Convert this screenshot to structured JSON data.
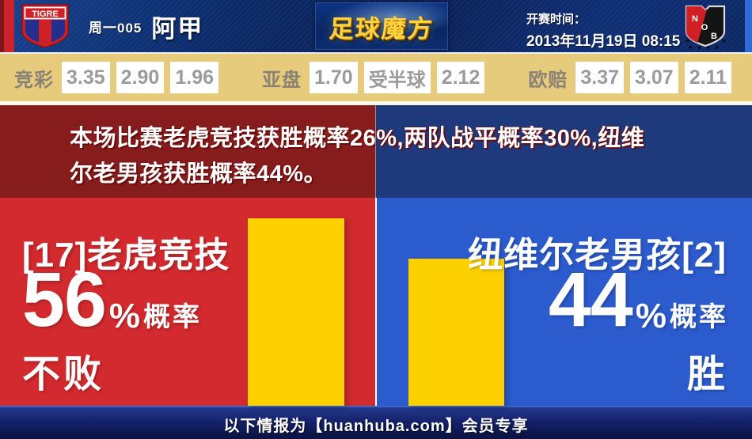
{
  "header": {
    "home_crest": {
      "text": "TIGRE"
    },
    "match_no": "周一005",
    "league": "阿甲",
    "site_logo": "足球魔方",
    "kickoff_label": "开赛时间：",
    "kickoff_time": "2013年11月19日 08:15",
    "away_crest": {
      "letters": [
        "N",
        "O",
        "B"
      ],
      "stars_bottom": "★★★★",
      "star_side": "★"
    }
  },
  "odds": {
    "jingcai": {
      "label": "竞彩",
      "values": [
        "3.35",
        "2.90",
        "1.96"
      ]
    },
    "yapan": {
      "label": "亚盘",
      "home": "1.70",
      "handicap": "受半球",
      "away": "2.12"
    },
    "oupei": {
      "label": "欧赔",
      "values": [
        "3.37",
        "3.07",
        "2.11"
      ]
    }
  },
  "summary": {
    "text": "本场比赛老虎竞技获胜概率26%,两队战平概率30%,纽维\n尔老男孩获胜概率44%。"
  },
  "home_panel": {
    "team": "[17]老虎竞技",
    "probability": "56",
    "percent": "%",
    "prob_label": "概率",
    "outcome": "不败",
    "bar_percent": 56
  },
  "away_panel": {
    "team": "纽维尔老男孩[2]",
    "probability": "44",
    "percent": "%",
    "prob_label": "概率",
    "outcome": "胜",
    "bar_percent": 44
  },
  "footer": {
    "text": "以下情报为【huanhuba.com】会员专享"
  },
  "colors": {
    "home_red": "#d22a2e",
    "away_blue": "#2c5bce",
    "dark_red": "#871c1c",
    "dark_blue": "#1e3a7c",
    "bar_yellow": "#fdd000",
    "odds_bg": "#e7cb7d",
    "header_navy": "#0a2158",
    "footer_navy": "#15226b",
    "logo_gold": "#ffd23e"
  }
}
